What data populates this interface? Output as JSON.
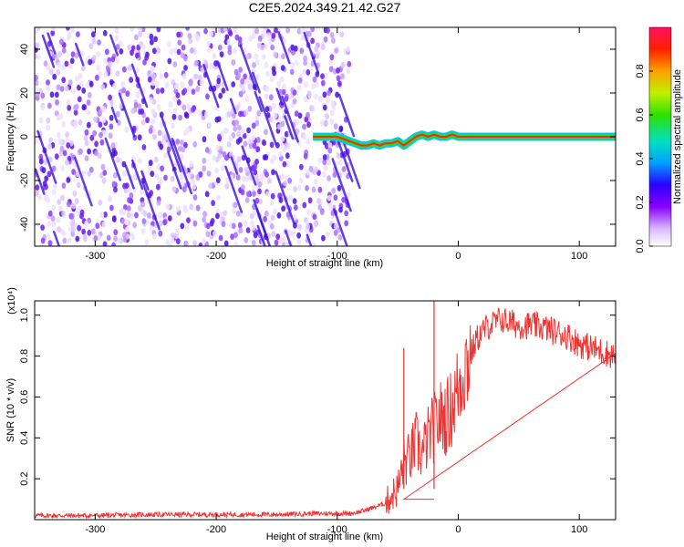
{
  "title": "C2E5.2024.349.21.42.G27",
  "chart_data": [
    {
      "type": "heatmap",
      "xlabel": "Height of straight line (km)",
      "ylabel": "Frequency (Hz)",
      "xlim": [
        -350,
        130
      ],
      "ylim": [
        -50,
        50
      ],
      "xticks": [
        -300,
        -200,
        -100,
        0,
        100
      ],
      "xtick_labels": [
        "-300",
        "-200",
        "-100",
        "0",
        "100"
      ],
      "yticks": [
        -40,
        -20,
        0,
        20,
        40
      ],
      "ytick_labels": [
        "-40",
        "-20",
        "0",
        "20",
        "40"
      ],
      "colorbar": {
        "label": "Normalized spectral amplitude",
        "range": [
          0,
          1
        ],
        "ticks": [
          0.0,
          0.2,
          0.4,
          0.6,
          0.8
        ],
        "tick_labels": [
          "0.0",
          "0.2",
          "0.4",
          "0.6",
          "0.8"
        ]
      },
      "noise_region_x": [
        -350,
        -90
      ],
      "signal_track": {
        "x": [
          -120,
          -110,
          -100,
          -90,
          -85,
          -80,
          -75,
          -70,
          -65,
          -60,
          -55,
          -50,
          -45,
          -40,
          -35,
          -30,
          -25,
          -20,
          -15,
          -10,
          -5,
          0,
          130
        ],
        "y": [
          0,
          0,
          0,
          -2,
          -3,
          -4,
          -4,
          -3,
          -4,
          -3,
          -3,
          -2,
          -4,
          -2,
          0,
          1,
          0,
          1,
          0,
          0,
          1,
          0,
          0
        ]
      },
      "grid": false
    },
    {
      "type": "line",
      "xlabel": "Height of straight line (km)",
      "ylabel": "SNR (10 * v/v)",
      "y_multiplier": "(x10⁴)",
      "xlim": [
        -350,
        130
      ],
      "ylim": [
        0,
        1.07
      ],
      "xticks": [
        -300,
        -200,
        -100,
        0,
        100
      ],
      "xtick_labels": [
        "-300",
        "-200",
        "-100",
        "0",
        "100"
      ],
      "yticks": [
        0.2,
        0.4,
        0.6,
        0.8,
        1.0
      ],
      "ytick_labels": [
        "0.2",
        "0.4",
        "0.6",
        "0.8",
        "1.0"
      ],
      "series": [
        {
          "color": "#ee3333",
          "x": [
            -350,
            -300,
            -250,
            -200,
            -150,
            -120,
            -100,
            -90,
            -80,
            -70,
            -60,
            -55,
            -50,
            -45,
            -40,
            -35,
            -30,
            -25,
            -20,
            -15,
            -10,
            -5,
            0,
            5,
            10,
            15,
            20,
            25,
            30,
            35,
            40,
            45,
            50,
            60,
            70,
            80,
            90,
            100,
            110,
            120,
            130
          ],
          "y": [
            0.02,
            0.02,
            0.025,
            0.025,
            0.025,
            0.03,
            0.03,
            0.03,
            0.04,
            0.06,
            0.08,
            0.12,
            0.15,
            0.28,
            0.3,
            0.38,
            0.32,
            0.4,
            0.45,
            0.5,
            0.5,
            0.55,
            0.65,
            0.75,
            0.8,
            0.88,
            0.92,
            0.95,
            0.96,
            0.98,
            0.97,
            0.96,
            0.95,
            0.95,
            0.94,
            0.92,
            0.9,
            0.86,
            0.84,
            0.82,
            0.8
          ]
        }
      ],
      "spikes": [
        {
          "x": -45,
          "y": 0.84
        },
        {
          "x": -20,
          "y": 1.07
        }
      ],
      "grid": false
    }
  ]
}
